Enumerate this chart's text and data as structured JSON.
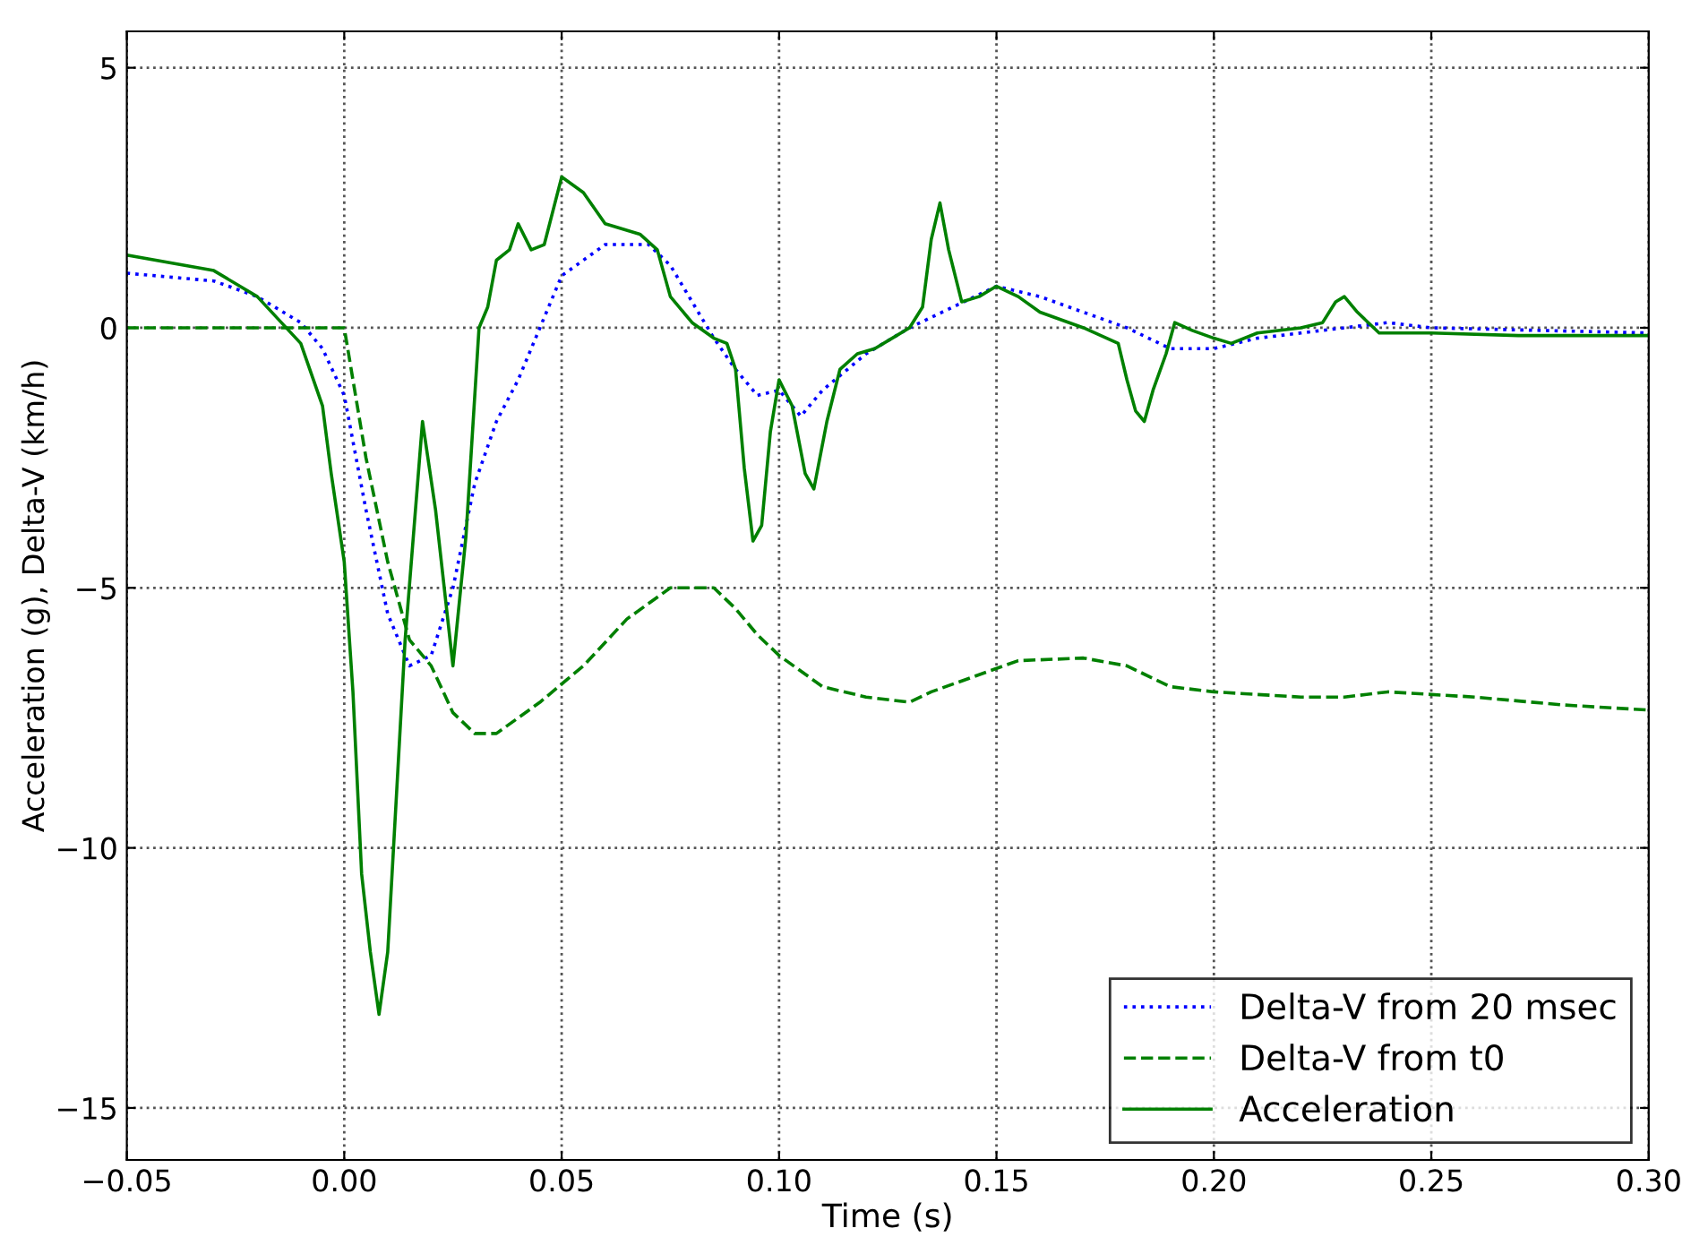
{
  "chart_data": {
    "type": "line",
    "xlabel": "Time (s)",
    "ylabel": "Acceleration (g), Delta-V (km/h)",
    "xlim": [
      -0.05,
      0.3
    ],
    "ylim": [
      -16,
      5.7
    ],
    "xticks": [
      {
        "value": -0.05,
        "label": "−0.05"
      },
      {
        "value": 0.0,
        "label": "0.00"
      },
      {
        "value": 0.05,
        "label": "0.05"
      },
      {
        "value": 0.1,
        "label": "0.10"
      },
      {
        "value": 0.15,
        "label": "0.15"
      },
      {
        "value": 0.2,
        "label": "0.20"
      },
      {
        "value": 0.25,
        "label": "0.25"
      },
      {
        "value": 0.3,
        "label": "0.30"
      }
    ],
    "yticks": [
      {
        "value": -15,
        "label": "−15"
      },
      {
        "value": -10,
        "label": "−10"
      },
      {
        "value": -5,
        "label": "−5"
      },
      0,
      5
    ],
    "grid": true,
    "legend": "bottom right",
    "series": [
      {
        "name": "Delta-V from 20 msec",
        "color": "#0000ff",
        "line_style": "dotted",
        "x": [
          -0.05,
          -0.03,
          -0.02,
          -0.01,
          -0.005,
          0.0,
          0.005,
          0.01,
          0.015,
          0.02,
          0.025,
          0.03,
          0.035,
          0.04,
          0.045,
          0.05,
          0.06,
          0.07,
          0.075,
          0.08,
          0.085,
          0.09,
          0.095,
          0.1,
          0.105,
          0.11,
          0.12,
          0.13,
          0.14,
          0.15,
          0.16,
          0.17,
          0.18,
          0.19,
          0.2,
          0.21,
          0.22,
          0.23,
          0.24,
          0.25,
          0.3
        ],
        "values": [
          1.05,
          0.9,
          0.6,
          0.1,
          -0.4,
          -1.3,
          -3.5,
          -5.5,
          -6.5,
          -6.3,
          -5.0,
          -3.0,
          -1.8,
          -1.0,
          0.0,
          1.0,
          1.6,
          1.6,
          1.2,
          0.5,
          -0.2,
          -0.8,
          -1.3,
          -1.2,
          -1.7,
          -1.2,
          -0.5,
          0.0,
          0.4,
          0.8,
          0.6,
          0.3,
          0.0,
          -0.4,
          -0.4,
          -0.2,
          -0.1,
          0.0,
          0.1,
          0.0,
          -0.1
        ]
      },
      {
        "name": "Delta-V from t0",
        "color": "#008000",
        "line_style": "dashed",
        "x": [
          -0.05,
          0.0,
          0.005,
          0.01,
          0.015,
          0.02,
          0.025,
          0.03,
          0.035,
          0.045,
          0.055,
          0.065,
          0.075,
          0.085,
          0.09,
          0.095,
          0.1,
          0.11,
          0.12,
          0.13,
          0.135,
          0.145,
          0.155,
          0.17,
          0.18,
          0.19,
          0.2,
          0.22,
          0.23,
          0.24,
          0.26,
          0.28,
          0.3
        ],
        "values": [
          0.0,
          0.0,
          -2.5,
          -4.5,
          -6.0,
          -6.5,
          -7.4,
          -7.8,
          -7.8,
          -7.2,
          -6.5,
          -5.6,
          -5.0,
          -5.0,
          -5.4,
          -5.9,
          -6.3,
          -6.9,
          -7.1,
          -7.2,
          -7.0,
          -6.7,
          -6.4,
          -6.35,
          -6.5,
          -6.9,
          -7.0,
          -7.1,
          -7.1,
          -7.0,
          -7.1,
          -7.25,
          -7.35
        ]
      },
      {
        "name": "Acceleration",
        "color": "#008000",
        "line_style": "solid",
        "x": [
          -0.05,
          -0.03,
          -0.02,
          -0.01,
          -0.005,
          -0.003,
          0.0,
          0.002,
          0.004,
          0.006,
          0.008,
          0.01,
          0.012,
          0.014,
          0.018,
          0.021,
          0.025,
          0.028,
          0.031,
          0.033,
          0.035,
          0.038,
          0.04,
          0.043,
          0.046,
          0.05,
          0.055,
          0.06,
          0.068,
          0.072,
          0.075,
          0.08,
          0.085,
          0.088,
          0.09,
          0.092,
          0.094,
          0.096,
          0.098,
          0.1,
          0.103,
          0.106,
          0.108,
          0.111,
          0.114,
          0.118,
          0.122,
          0.126,
          0.13,
          0.133,
          0.135,
          0.137,
          0.139,
          0.142,
          0.146,
          0.15,
          0.155,
          0.16,
          0.17,
          0.178,
          0.18,
          0.182,
          0.184,
          0.186,
          0.189,
          0.191,
          0.195,
          0.2,
          0.204,
          0.21,
          0.22,
          0.225,
          0.228,
          0.23,
          0.233,
          0.238,
          0.25,
          0.27,
          0.3
        ],
        "values": [
          1.4,
          1.1,
          0.6,
          -0.3,
          -1.5,
          -2.8,
          -4.5,
          -7.0,
          -10.5,
          -12.0,
          -13.2,
          -12.0,
          -9.0,
          -6.0,
          -1.8,
          -3.5,
          -6.5,
          -4.0,
          0.0,
          0.4,
          1.3,
          1.5,
          2.0,
          1.5,
          1.6,
          2.9,
          2.6,
          2.0,
          1.8,
          1.5,
          0.6,
          0.1,
          -0.2,
          -0.3,
          -0.8,
          -2.7,
          -4.1,
          -3.8,
          -2.0,
          -1.0,
          -1.5,
          -2.8,
          -3.1,
          -1.8,
          -0.8,
          -0.5,
          -0.4,
          -0.2,
          0.0,
          0.4,
          1.7,
          2.4,
          1.5,
          0.5,
          0.6,
          0.8,
          0.6,
          0.3,
          0.0,
          -0.3,
          -1.0,
          -1.6,
          -1.8,
          -1.2,
          -0.5,
          0.1,
          -0.05,
          -0.2,
          -0.3,
          -0.1,
          0.0,
          0.1,
          0.5,
          0.6,
          0.3,
          -0.1,
          -0.1,
          -0.15,
          -0.15
        ]
      }
    ]
  }
}
